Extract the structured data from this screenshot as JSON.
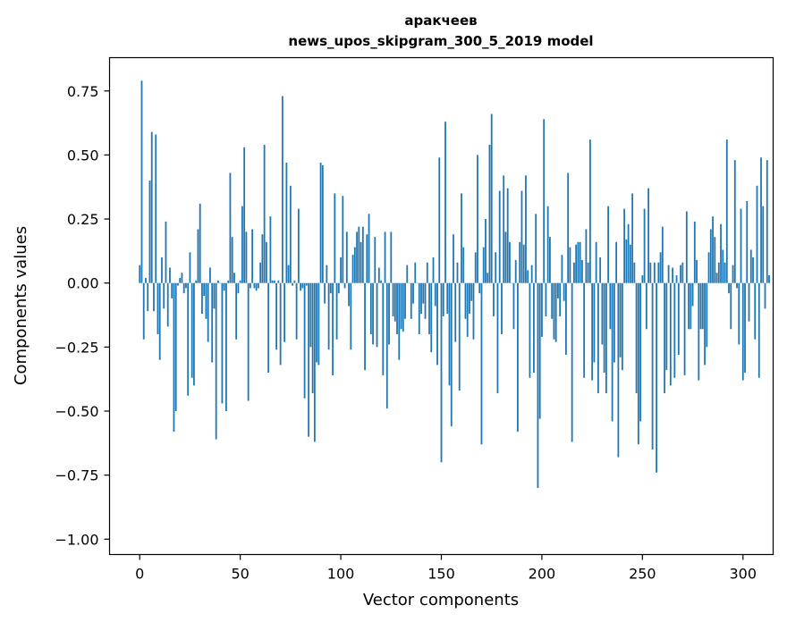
{
  "chart_data": {
    "type": "bar",
    "title": "аракчеев",
    "subtitle": "news_upos_skipgram_300_5_2019 model",
    "xlabel": "Vector components",
    "ylabel": "Components values",
    "xlim": [
      -15,
      315
    ],
    "ylim": [
      -1.06,
      0.88
    ],
    "xticks": [
      0,
      50,
      100,
      150,
      200,
      250,
      300
    ],
    "yticks": [
      -1.0,
      -0.75,
      -0.5,
      -0.25,
      0.0,
      0.25,
      0.5,
      0.75
    ],
    "ytick_labels": [
      "−1.00",
      "−0.75",
      "−0.50",
      "−0.25",
      "0.00",
      "0.25",
      "0.50",
      "0.75"
    ],
    "xtick_labels": [
      "0",
      "50",
      "100",
      "150",
      "200",
      "250",
      "300"
    ],
    "color": "#1f77b4",
    "values": [
      0.07,
      0.79,
      -0.22,
      0.02,
      -0.11,
      0.4,
      0.59,
      -0.11,
      0.58,
      -0.2,
      -0.3,
      0.1,
      -0.1,
      0.24,
      -0.17,
      0.06,
      -0.06,
      -0.58,
      -0.5,
      -0.01,
      0.02,
      0.04,
      -0.04,
      -0.02,
      -0.44,
      0.12,
      -0.37,
      -0.4,
      0.01,
      0.21,
      0.31,
      -0.12,
      -0.05,
      -0.14,
      -0.23,
      0.06,
      -0.31,
      -0.1,
      -0.61,
      0.01,
      0.0,
      -0.47,
      -0.03,
      -0.5,
      0.01,
      0.43,
      0.18,
      0.04,
      -0.22,
      -0.04,
      0.01,
      0.3,
      0.53,
      0.2,
      -0.46,
      -0.02,
      0.21,
      -0.02,
      -0.03,
      -0.02,
      0.08,
      0.19,
      0.54,
      0.16,
      -0.35,
      0.26,
      0.01,
      0.01,
      -0.26,
      0.01,
      -0.32,
      0.73,
      -0.23,
      0.47,
      0.07,
      0.38,
      -0.01,
      0.01,
      -0.22,
      0.29,
      -0.03,
      -0.02,
      -0.45,
      -0.01,
      -0.6,
      -0.25,
      -0.43,
      -0.62,
      -0.31,
      -0.32,
      0.47,
      0.46,
      -0.08,
      0.07,
      -0.26,
      -0.04,
      -0.36,
      0.35,
      -0.22,
      -0.04,
      0.1,
      0.34,
      -0.02,
      0.2,
      -0.09,
      -0.26,
      0.11,
      0.14,
      0.2,
      0.22,
      0.16,
      0.22,
      -0.34,
      0.19,
      0.27,
      -0.2,
      -0.24,
      0.18,
      -0.25,
      0.06,
      0.01,
      -0.36,
      0.2,
      -0.49,
      -0.24,
      0.2,
      -0.13,
      -0.15,
      -0.2,
      -0.3,
      -0.18,
      -0.19,
      -0.14,
      0.07,
      0.0,
      -0.14,
      -0.08,
      0.08,
      0.0,
      -0.2,
      -0.12,
      -0.08,
      -0.14,
      0.08,
      -0.2,
      -0.27,
      0.1,
      -0.09,
      -0.32,
      0.49,
      -0.7,
      -0.13,
      0.63,
      -0.12,
      -0.4,
      -0.56,
      0.19,
      -0.23,
      0.08,
      -0.42,
      0.35,
      0.14,
      -0.14,
      -0.21,
      -0.12,
      -0.07,
      -0.22,
      0.12,
      0.5,
      -0.04,
      -0.63,
      0.14,
      0.25,
      0.04,
      0.54,
      0.66,
      -0.13,
      0.12,
      -0.43,
      0.36,
      -0.2,
      0.42,
      0.2,
      0.37,
      0.16,
      0.0,
      -0.18,
      0.09,
      -0.58,
      0.16,
      0.36,
      0.15,
      0.42,
      0.05,
      -0.37,
      0.07,
      -0.35,
      0.27,
      -0.8,
      -0.53,
      -0.21,
      0.64,
      -0.13,
      0.3,
      0.18,
      -0.14,
      -0.22,
      -0.23,
      -0.06,
      -0.13,
      0.11,
      -0.07,
      -0.28,
      0.43,
      0.14,
      -0.62,
      0.08,
      0.15,
      0.16,
      0.16,
      0.09,
      -0.37,
      0.21,
      0.08,
      0.56,
      -0.38,
      -0.31,
      0.16,
      -0.43,
      0.1,
      -0.24,
      -0.35,
      -0.43,
      0.3,
      -0.18,
      -0.54,
      -0.31,
      0.16,
      -0.68,
      -0.29,
      -0.34,
      0.29,
      0.17,
      0.23,
      0.15,
      0.35,
      0.08,
      -0.43,
      -0.63,
      -0.54,
      0.03,
      0.29,
      -0.18,
      0.37,
      0.08,
      -0.65,
      0.08,
      -0.74,
      0.08,
      0.12,
      0.22,
      -0.43,
      -0.34,
      0.07,
      -0.4,
      0.06,
      -0.37,
      0.03,
      -0.28,
      0.07,
      0.08,
      -0.36,
      0.28,
      -0.18,
      -0.18,
      -0.09,
      0.24,
      0.09,
      -0.38,
      -0.18,
      -0.18,
      -0.32,
      -0.25,
      0.12,
      0.21,
      0.26,
      0.18,
      0.04,
      0.08,
      0.23,
      0.13,
      0.08,
      0.56,
      -0.04,
      -0.18,
      0.07,
      0.48,
      -0.02,
      -0.24,
      0.29,
      -0.38,
      -0.35,
      0.32,
      -0.15,
      0.13,
      0.1,
      -0.22,
      0.38,
      -0.37,
      0.49,
      0.3,
      -0.1,
      0.48,
      0.03
    ]
  }
}
